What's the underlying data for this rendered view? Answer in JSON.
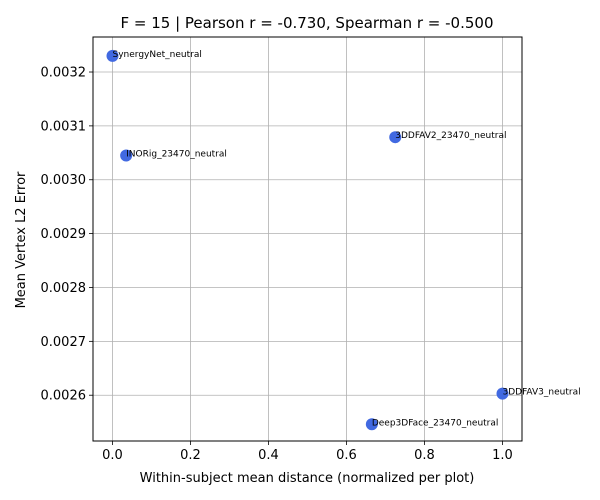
{
  "chart_data": {
    "type": "scatter",
    "title": "F = 15 | Pearson r = -0.730, Spearman r = -0.500",
    "xlabel": "Within-subject mean distance (normalized per plot)",
    "ylabel": "Mean Vertex L2 Error",
    "xlim": [
      -0.05,
      1.05
    ],
    "ylim": [
      0.002515,
      0.003265
    ],
    "xticks": [
      0.0,
      0.2,
      0.4,
      0.6,
      0.8,
      1.0
    ],
    "xtick_labels": [
      "0.0",
      "0.2",
      "0.4",
      "0.6",
      "0.8",
      "1.0"
    ],
    "yticks": [
      0.0026,
      0.0027,
      0.0028,
      0.0029,
      0.003,
      0.0031,
      0.0032
    ],
    "ytick_labels": [
      "0.0026",
      "0.0027",
      "0.0028",
      "0.0029",
      "0.0030",
      "0.0031",
      "0.0032"
    ],
    "grid": true,
    "marker_color": "#4169E1",
    "points": [
      {
        "label": "SynergyNet_neutral",
        "x": 0.0,
        "y": 0.00323
      },
      {
        "label": "INORig_23470_neutral",
        "x": 0.035,
        "y": 0.003045
      },
      {
        "label": "3DDFAV2_23470_neutral",
        "x": 0.725,
        "y": 0.003079
      },
      {
        "label": "3DDFAV3_neutral",
        "x": 1.0,
        "y": 0.002603
      },
      {
        "label": "Deep3DFace_23470_neutral",
        "x": 0.665,
        "y": 0.002546
      }
    ]
  }
}
